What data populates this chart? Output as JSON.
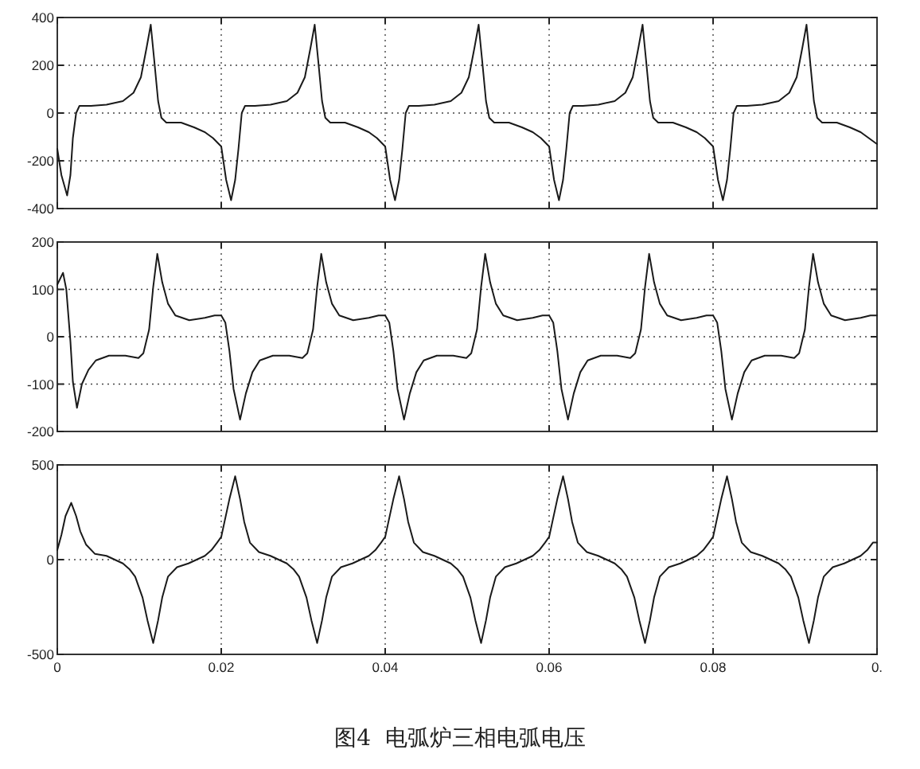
{
  "chart_data": [
    {
      "type": "line",
      "xlim": [
        0,
        0.1
      ],
      "ylim": [
        -400,
        400
      ],
      "xticks": [
        0,
        0.02,
        0.04,
        0.06,
        0.08
      ],
      "yticks": [
        -400,
        -200,
        0,
        200,
        400
      ],
      "grid": true,
      "tick_labels": "y",
      "x": [
        0,
        0.0005,
        0.0012,
        0.0016,
        0.0019,
        0.0023,
        0.0027,
        0.0041,
        0.006,
        0.008,
        0.0093,
        0.0102,
        0.0109,
        0.0114,
        0.0118,
        0.0123,
        0.0127,
        0.0133,
        0.0151,
        0.0167,
        0.018,
        0.019,
        0.02,
        0.0206,
        0.0212,
        0.0217,
        0.0221,
        0.0225,
        0.0229,
        0.0241,
        0.026,
        0.028,
        0.0293,
        0.0302,
        0.0309,
        0.0314,
        0.0318,
        0.0323,
        0.0327,
        0.0333,
        0.0351,
        0.0367,
        0.038,
        0.039,
        0.04,
        0.0406,
        0.0412,
        0.0417,
        0.0421,
        0.0425,
        0.0429,
        0.0441,
        0.046,
        0.048,
        0.0493,
        0.0502,
        0.0509,
        0.0514,
        0.0518,
        0.0523,
        0.0527,
        0.0533,
        0.0551,
        0.0567,
        0.058,
        0.059,
        0.06,
        0.0606,
        0.0612,
        0.0617,
        0.0621,
        0.0625,
        0.0629,
        0.0641,
        0.066,
        0.068,
        0.0693,
        0.0702,
        0.0709,
        0.0714,
        0.0718,
        0.0723,
        0.0727,
        0.0733,
        0.0751,
        0.0767,
        0.078,
        0.079,
        0.08,
        0.0806,
        0.0812,
        0.0817,
        0.0821,
        0.0825,
        0.0829,
        0.0841,
        0.086,
        0.088,
        0.0893,
        0.0902,
        0.0909,
        0.0914,
        0.0918,
        0.0923,
        0.0927,
        0.0933,
        0.0951,
        0.0967,
        0.098,
        0.099,
        0.1
      ],
      "series": [
        {
          "color": "#1a1a1a",
          "values": [
            -150,
            -260,
            -345,
            -260,
            -105,
            0,
            30,
            30,
            35,
            50,
            85,
            150,
            275,
            370,
            230,
            50,
            -20,
            -40,
            -40,
            -60,
            -80,
            -105,
            -140,
            -280,
            -365,
            -280,
            -150,
            0,
            30,
            30,
            35,
            50,
            85,
            150,
            275,
            370,
            230,
            50,
            -20,
            -40,
            -40,
            -60,
            -80,
            -105,
            -140,
            -280,
            -365,
            -280,
            -150,
            0,
            30,
            30,
            35,
            50,
            85,
            150,
            275,
            370,
            230,
            50,
            -20,
            -40,
            -40,
            -60,
            -80,
            -105,
            -140,
            -280,
            -365,
            -280,
            -150,
            0,
            30,
            30,
            35,
            50,
            85,
            150,
            275,
            370,
            230,
            50,
            -20,
            -40,
            -40,
            -60,
            -80,
            -105,
            -140,
            -280,
            -365,
            -280,
            -150,
            0,
            30,
            30,
            35,
            50,
            85,
            150,
            275,
            370,
            230,
            50,
            -20,
            -40,
            -40,
            -60,
            -80,
            -105,
            -130
          ]
        }
      ]
    },
    {
      "type": "line",
      "xlim": [
        0,
        0.1
      ],
      "ylim": [
        -200,
        200
      ],
      "xticks": [
        0,
        0.02,
        0.04,
        0.06,
        0.08
      ],
      "yticks": [
        -200,
        -100,
        0,
        100,
        200
      ],
      "grid": true,
      "tick_labels": "y",
      "x": [
        0,
        0.0007,
        0.0011,
        0.0016,
        0.0019,
        0.0024,
        0.003,
        0.0038,
        0.0047,
        0.0063,
        0.0083,
        0.0099,
        0.0105,
        0.0112,
        0.0117,
        0.0122,
        0.0128,
        0.0135,
        0.0144,
        0.0161,
        0.018,
        0.0192,
        0.02,
        0.0205,
        0.021,
        0.0215,
        0.0223,
        0.023,
        0.0238,
        0.0247,
        0.0263,
        0.0283,
        0.0299,
        0.0305,
        0.0312,
        0.0317,
        0.0322,
        0.0328,
        0.0335,
        0.0344,
        0.0361,
        0.038,
        0.0392,
        0.04,
        0.0405,
        0.041,
        0.0415,
        0.0423,
        0.043,
        0.0438,
        0.0447,
        0.0463,
        0.0483,
        0.0499,
        0.0505,
        0.0512,
        0.0517,
        0.0522,
        0.0528,
        0.0535,
        0.0544,
        0.0561,
        0.058,
        0.0592,
        0.06,
        0.0605,
        0.061,
        0.0615,
        0.0623,
        0.063,
        0.0638,
        0.0647,
        0.0663,
        0.0683,
        0.0699,
        0.0705,
        0.0712,
        0.0717,
        0.0722,
        0.0728,
        0.0735,
        0.0744,
        0.0761,
        0.078,
        0.0792,
        0.08,
        0.0805,
        0.081,
        0.0815,
        0.0823,
        0.083,
        0.0838,
        0.0847,
        0.0863,
        0.0883,
        0.0899,
        0.0905,
        0.0912,
        0.0917,
        0.0922,
        0.0928,
        0.0935,
        0.0944,
        0.0961,
        0.098,
        0.0992,
        0.1
      ],
      "series": [
        {
          "color": "#1a1a1a",
          "values": [
            110,
            135,
            100,
            -10,
            -95,
            -150,
            -100,
            -70,
            -50,
            -40,
            -40,
            -45,
            -35,
            15,
            105,
            175,
            115,
            70,
            45,
            35,
            40,
            45,
            45,
            30,
            -30,
            -110,
            -175,
            -120,
            -75,
            -50,
            -40,
            -40,
            -45,
            -35,
            15,
            105,
            175,
            115,
            70,
            45,
            35,
            40,
            45,
            45,
            30,
            -30,
            -110,
            -175,
            -120,
            -75,
            -50,
            -40,
            -40,
            -45,
            -35,
            15,
            105,
            175,
            115,
            70,
            45,
            35,
            40,
            45,
            45,
            30,
            -30,
            -110,
            -175,
            -120,
            -75,
            -50,
            -40,
            -40,
            -45,
            -35,
            15,
            105,
            175,
            115,
            70,
            45,
            35,
            40,
            45,
            45,
            30,
            -30,
            -110,
            -175,
            -120,
            -75,
            -50,
            -40,
            -40,
            -45,
            -35,
            15,
            105,
            175,
            115,
            70,
            45,
            35,
            40,
            45,
            45
          ]
        }
      ]
    },
    {
      "type": "line",
      "xlim": [
        0,
        0.1
      ],
      "ylim": [
        -500,
        500
      ],
      "xticks": [
        0,
        0.02,
        0.04,
        0.06,
        0.08,
        {
          "value": 0.1,
          "label": "0."
        }
      ],
      "yticks": [
        -500,
        0,
        500
      ],
      "grid": true,
      "x": [
        0,
        0.0005,
        0.001,
        0.0017,
        0.0023,
        0.0028,
        0.0035,
        0.0046,
        0.006,
        0.007,
        0.008,
        0.0088,
        0.0095,
        0.0104,
        0.011,
        0.0117,
        0.0123,
        0.0128,
        0.0135,
        0.0146,
        0.016,
        0.017,
        0.018,
        0.0188,
        0.0195,
        0.02,
        0.0204,
        0.021,
        0.0217,
        0.0223,
        0.0228,
        0.0235,
        0.0246,
        0.026,
        0.027,
        0.028,
        0.0288,
        0.0295,
        0.0304,
        0.031,
        0.0317,
        0.0323,
        0.0328,
        0.0335,
        0.0346,
        0.036,
        0.037,
        0.038,
        0.0388,
        0.0395,
        0.04,
        0.0404,
        0.041,
        0.0417,
        0.0423,
        0.0428,
        0.0435,
        0.0446,
        0.046,
        0.047,
        0.048,
        0.0488,
        0.0495,
        0.0504,
        0.051,
        0.0517,
        0.0523,
        0.0528,
        0.0535,
        0.0546,
        0.056,
        0.057,
        0.058,
        0.0588,
        0.0595,
        0.06,
        0.0604,
        0.061,
        0.0617,
        0.0623,
        0.0628,
        0.0635,
        0.0646,
        0.066,
        0.067,
        0.068,
        0.0688,
        0.0695,
        0.0704,
        0.071,
        0.0717,
        0.0723,
        0.0728,
        0.0735,
        0.0746,
        0.076,
        0.077,
        0.078,
        0.0788,
        0.0795,
        0.08,
        0.0804,
        0.081,
        0.0817,
        0.0823,
        0.0828,
        0.0835,
        0.0846,
        0.086,
        0.087,
        0.088,
        0.0888,
        0.0895,
        0.0904,
        0.091,
        0.0917,
        0.0923,
        0.0928,
        0.0935,
        0.0946,
        0.096,
        0.097,
        0.098,
        0.0988,
        0.0995,
        0.1
      ],
      "series": [
        {
          "color": "#1a1a1a",
          "values": [
            50,
            130,
            230,
            300,
            230,
            150,
            80,
            30,
            20,
            0,
            -20,
            -50,
            -90,
            -200,
            -320,
            -440,
            -320,
            -200,
            -90,
            -40,
            -20,
            0,
            20,
            50,
            90,
            120,
            200,
            320,
            440,
            320,
            200,
            90,
            40,
            20,
            0,
            -20,
            -50,
            -90,
            -200,
            -320,
            -440,
            -320,
            -200,
            -90,
            -40,
            -20,
            0,
            20,
            50,
            90,
            120,
            200,
            320,
            440,
            320,
            200,
            90,
            40,
            20,
            0,
            -20,
            -50,
            -90,
            -200,
            -320,
            -440,
            -320,
            -200,
            -90,
            -40,
            -20,
            0,
            20,
            50,
            90,
            120,
            200,
            320,
            440,
            320,
            200,
            90,
            40,
            20,
            0,
            -20,
            -50,
            -90,
            -200,
            -320,
            -440,
            -320,
            -200,
            -90,
            -40,
            -20,
            0,
            20,
            50,
            90,
            120,
            200,
            320,
            440,
            320,
            200,
            90,
            40,
            20,
            0,
            -20,
            -50,
            -90,
            -200,
            -320,
            -440,
            -320,
            -200,
            -90,
            -40,
            -20,
            0,
            20,
            50,
            90,
            90
          ]
        }
      ],
      "annotations": [
        "图4  电弧炉三相电弧电压"
      ]
    }
  ]
}
